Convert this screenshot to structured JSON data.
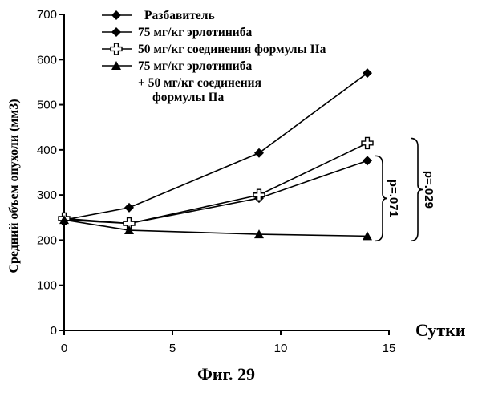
{
  "chart_data": {
    "type": "line",
    "xlabel": "Сутки",
    "ylabel": "Средний объем опухоли (мм3)",
    "xlim": [
      0,
      15
    ],
    "ylim": [
      0,
      700
    ],
    "xticks": [
      0,
      5,
      10,
      15
    ],
    "yticks": [
      0,
      100,
      200,
      300,
      400,
      500,
      600,
      700
    ],
    "legend_position": "top",
    "series": [
      {
        "name": "Разбавитель",
        "marker": "diamond",
        "x": [
          0,
          3,
          9,
          14
        ],
        "y": [
          245,
          272,
          393,
          570
        ]
      },
      {
        "name": "75 мг/кг эрлотиниба",
        "marker": "diamond",
        "x": [
          0,
          3,
          9,
          14
        ],
        "y": [
          245,
          237,
          293,
          376
        ]
      },
      {
        "name": "50 мг/кг соединения формулы IIa",
        "marker": "cross",
        "x": [
          0,
          3,
          9,
          14
        ],
        "y": [
          248,
          237,
          300,
          415
        ]
      },
      {
        "name": "75 мг/кг эрлотиниба",
        "name_line2": "+ 50 мг/кг соединения",
        "name_line3": "формулы IIa",
        "marker": "triangle",
        "x": [
          0,
          3,
          9,
          14
        ],
        "y": [
          245,
          222,
          213,
          209
        ]
      }
    ],
    "annotations": [
      {
        "text": "p=.071",
        "y_range": [
          209,
          376
        ]
      },
      {
        "text": "p=.029",
        "y_range": [
          209,
          415
        ]
      }
    ]
  },
  "caption": "Фиг. 29"
}
